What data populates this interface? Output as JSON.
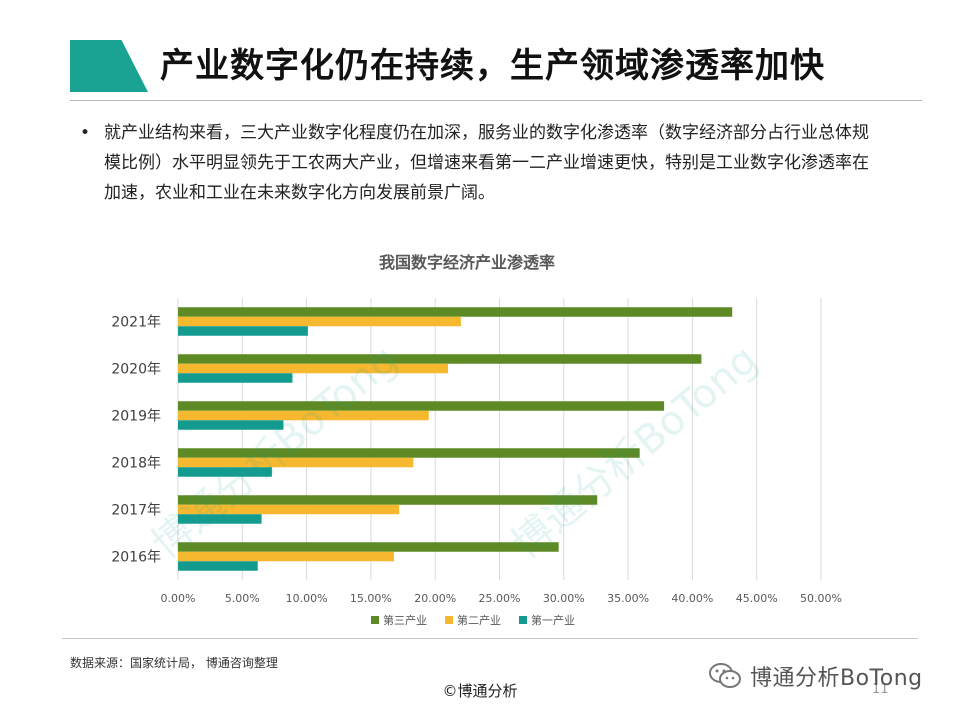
{
  "header": {
    "title": "产业数字化仍在持续，生产领域渗透率加快"
  },
  "bullet": {
    "dot": "•",
    "text": "就产业结构来看，三大产业数字化程度仍在加深，服务业的数字化渗透率（数字经济部分占行业总体规模比例）水平明显领先于工农两大产业，但增速来看第一二产业增速更快，特别是工业数字化渗透率在加速，农业和工业在未来数字化方向发展前景广阔。"
  },
  "chart_data": {
    "type": "bar",
    "orientation": "horizontal",
    "title": "我国数字经济产业渗透率",
    "categories": [
      "2016年",
      "2017年",
      "2018年",
      "2019年",
      "2020年",
      "2021年"
    ],
    "series": [
      {
        "name": "第三产业",
        "color": "#5d8a25",
        "values": [
          29.6,
          32.6,
          35.9,
          37.8,
          40.7,
          43.1
        ]
      },
      {
        "name": "第二产业",
        "color": "#f5b82e",
        "values": [
          16.8,
          17.2,
          18.3,
          19.5,
          21.0,
          22.0
        ]
      },
      {
        "name": "第一产业",
        "color": "#149b90",
        "values": [
          6.2,
          6.5,
          7.3,
          8.2,
          8.9,
          10.1
        ]
      }
    ],
    "xlim": [
      0,
      50
    ],
    "xticks": [
      "0.00%",
      "5.00%",
      "10.00%",
      "15.00%",
      "20.00%",
      "25.00%",
      "30.00%",
      "35.00%",
      "40.00%",
      "45.00%",
      "50.00%"
    ],
    "grid": true,
    "legend_position": "bottom",
    "legend": [
      "第三产业",
      "第二产业",
      "第一产业"
    ]
  },
  "footer": {
    "source": "数据来源：国家统计局， 博通咨询整理",
    "copyright": "©博通分析",
    "page_number": "11",
    "brand": "博通分析BoTong",
    "brand_icon": "wechat-icon"
  },
  "watermarks": [
    "博通分析BoTong",
    "博通分析BoTong"
  ]
}
